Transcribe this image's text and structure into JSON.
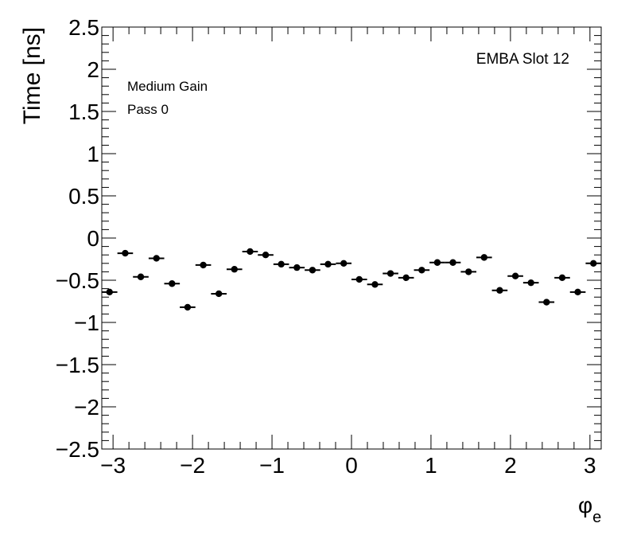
{
  "chart_data": {
    "type": "scatter",
    "title": "",
    "xlabel_main": "φ",
    "xlabel_sub": "e",
    "ylabel": "Time [ns]",
    "xlim": [
      -3.1416,
      3.1416
    ],
    "ylim": [
      -2.5,
      2.5
    ],
    "x_ticks": [
      -3,
      -2,
      -1,
      0,
      1,
      2,
      3
    ],
    "x_tick_labels": [
      "−3",
      "−2",
      "−1",
      "0",
      "1",
      "2",
      "3"
    ],
    "y_ticks": [
      -2.5,
      -2,
      -1.5,
      -1,
      -0.5,
      0,
      0.5,
      1,
      1.5,
      2,
      2.5
    ],
    "y_tick_labels": [
      "−2.5",
      "−2",
      "−1.5",
      "−1",
      "−0.5",
      "0",
      "0.5",
      "1",
      "1.5",
      "2",
      "2.5"
    ],
    "bin_width": 0.19635,
    "annotations": {
      "top_right": "EMBA Slot 12",
      "line1": "Medium Gain",
      "line2": "Pass 0"
    },
    "series": [
      {
        "x": [
          -3.044,
          -2.847,
          -2.651,
          -2.454,
          -2.258,
          -2.062,
          -1.865,
          -1.669,
          -1.473,
          -1.276,
          -1.08,
          -0.884,
          -0.687,
          -0.491,
          -0.295,
          -0.098,
          0.098,
          0.295,
          0.491,
          0.687,
          0.884,
          1.08,
          1.276,
          1.473,
          1.669,
          1.865,
          2.062,
          2.258,
          2.454,
          2.651,
          2.847,
          3.044
        ],
        "y": [
          -0.64,
          -0.18,
          -0.46,
          -0.24,
          -0.54,
          -0.82,
          -0.32,
          -0.66,
          -0.37,
          -0.16,
          -0.2,
          -0.31,
          -0.35,
          -0.38,
          -0.31,
          -0.3,
          -0.49,
          -0.55,
          -0.42,
          -0.47,
          -0.38,
          -0.29,
          -0.29,
          -0.4,
          -0.23,
          -0.62,
          -0.45,
          -0.53,
          -0.76,
          -0.47,
          -0.64,
          -0.3
        ]
      }
    ]
  }
}
